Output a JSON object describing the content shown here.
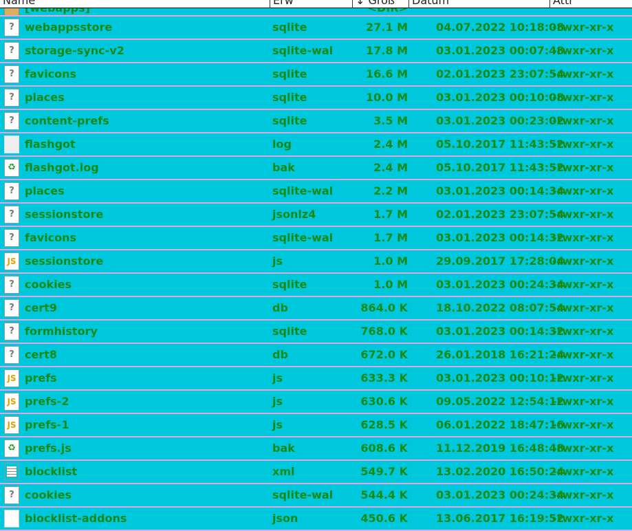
{
  "columns": [
    "Name",
    "Erw",
    "↓ Größ",
    "Datum",
    "Attr"
  ],
  "partial_row": {
    "name": "[webapps]",
    "size": "<DIR>",
    "icon": "folder-icon"
  },
  "files": [
    {
      "name": "webappsstore",
      "ext": "sqlite",
      "size": "27.1 M",
      "date": "04.07.2022 10:18:08",
      "attr": "-rwxr-xr-x",
      "icon": "unknown"
    },
    {
      "name": "storage-sync-v2",
      "ext": "sqlite-wal",
      "size": "17.8 M",
      "date": "03.01.2023 00:07:48",
      "attr": "-rwxr-xr-x",
      "icon": "unknown"
    },
    {
      "name": "favicons",
      "ext": "sqlite",
      "size": "16.6 M",
      "date": "02.01.2023 23:07:54",
      "attr": "-rwxr-xr-x",
      "icon": "unknown"
    },
    {
      "name": "places",
      "ext": "sqlite",
      "size": "10.0 M",
      "date": "03.01.2023 00:10:08",
      "attr": "-rwxr-xr-x",
      "icon": "unknown"
    },
    {
      "name": "content-prefs",
      "ext": "sqlite",
      "size": "3.5 M",
      "date": "03.01.2023 00:23:02",
      "attr": "-rwxr-xr-x",
      "icon": "unknown"
    },
    {
      "name": "flashgot",
      "ext": "log",
      "size": "2.4 M",
      "date": "05.10.2017 11:43:52",
      "attr": "-rwxr-xr-x",
      "icon": "log"
    },
    {
      "name": "flashgot.log",
      "ext": "bak",
      "size": "2.4 M",
      "date": "05.10.2017 11:43:52",
      "attr": "-rwxr-xr-x",
      "icon": "bak"
    },
    {
      "name": "places",
      "ext": "sqlite-wal",
      "size": "2.2 M",
      "date": "03.01.2023 00:14:34",
      "attr": "-rwxr-xr-x",
      "icon": "unknown"
    },
    {
      "name": "sessionstore",
      "ext": "jsonlz4",
      "size": "1.7 M",
      "date": "02.01.2023 23:07:54",
      "attr": "-rwxr-xr-x",
      "icon": "unknown"
    },
    {
      "name": "favicons",
      "ext": "sqlite-wal",
      "size": "1.7 M",
      "date": "03.01.2023 00:14:32",
      "attr": "-rwxr-xr-x",
      "icon": "unknown"
    },
    {
      "name": "sessionstore",
      "ext": "js",
      "size": "1.0 M",
      "date": "29.09.2017 17:28:04",
      "attr": "-rwxr-xr-x",
      "icon": "js"
    },
    {
      "name": "cookies",
      "ext": "sqlite",
      "size": "1.0 M",
      "date": "03.01.2023 00:24:34",
      "attr": "-rwxr-xr-x",
      "icon": "unknown"
    },
    {
      "name": "cert9",
      "ext": "db",
      "size": "864.0 K",
      "date": "18.10.2022 08:07:54",
      "attr": "-rwxr-xr-x",
      "icon": "unknown"
    },
    {
      "name": "formhistory",
      "ext": "sqlite",
      "size": "768.0 K",
      "date": "03.01.2023 00:14:32",
      "attr": "-rwxr-xr-x",
      "icon": "unknown"
    },
    {
      "name": "cert8",
      "ext": "db",
      "size": "672.0 K",
      "date": "26.01.2018 16:21:24",
      "attr": "-rwxr-xr-x",
      "icon": "unknown"
    },
    {
      "name": "prefs",
      "ext": "js",
      "size": "633.3 K",
      "date": "03.01.2023 00:10:12",
      "attr": "-rwxr-xr-x",
      "icon": "js"
    },
    {
      "name": "prefs-2",
      "ext": "js",
      "size": "630.6 K",
      "date": "09.05.2022 12:54:12",
      "attr": "-rwxr-xr-x",
      "icon": "js"
    },
    {
      "name": "prefs-1",
      "ext": "js",
      "size": "628.5 K",
      "date": "06.01.2022 18:47:16",
      "attr": "-rwxr-xr-x",
      "icon": "js"
    },
    {
      "name": "prefs.js",
      "ext": "bak",
      "size": "608.6 K",
      "date": "11.12.2019 16:48:48",
      "attr": "-rwxr-xr-x",
      "icon": "bak"
    },
    {
      "name": "blocklist",
      "ext": "xml",
      "size": "549.7 K",
      "date": "13.02.2020 16:50:24",
      "attr": "-rwxr-xr-x",
      "icon": "xml"
    },
    {
      "name": "cookies",
      "ext": "sqlite-wal",
      "size": "544.4 K",
      "date": "03.01.2023 00:24:34",
      "attr": "-rwxr-xr-x",
      "icon": "unknown"
    },
    {
      "name": "blocklist-addons",
      "ext": "json",
      "size": "450.6 K",
      "date": "13.06.2017 16:19:52",
      "attr": "-rwxr-xr-x",
      "icon": "json"
    }
  ],
  "colors": {
    "background": "#00c8dc",
    "text": "#168a16",
    "separator": "#e0a8e0"
  }
}
